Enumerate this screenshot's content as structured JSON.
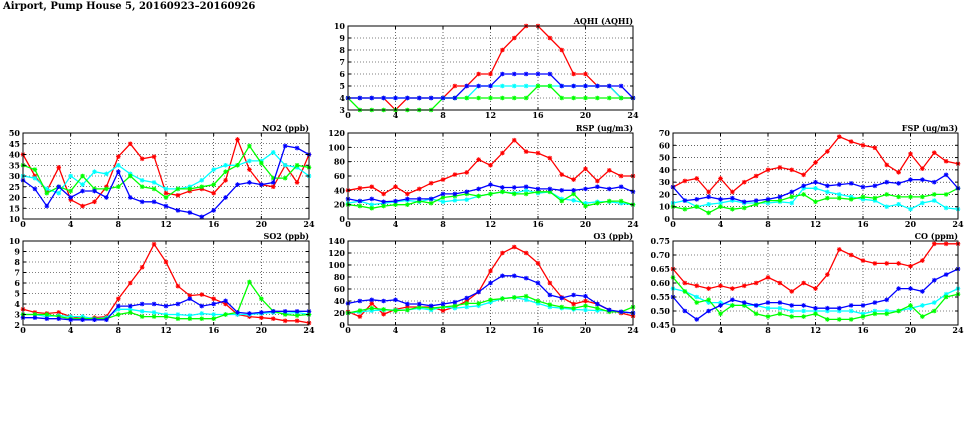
{
  "page": {
    "title": "Airport, Pump House 5, 20160923–20160926"
  },
  "chart_data": [
    {
      "id": "aqhi",
      "type": "line",
      "title": "AQHI (AQHI)",
      "xlim": [
        0,
        24
      ],
      "ylim": [
        3,
        10
      ],
      "xticks": [
        0,
        4,
        8,
        12,
        16,
        20,
        24
      ],
      "yticks": [
        3,
        4,
        5,
        6,
        7,
        8,
        9,
        10
      ],
      "grid": true,
      "x": [
        0,
        1,
        2,
        3,
        4,
        5,
        6,
        7,
        8,
        9,
        10,
        11,
        12,
        13,
        14,
        15,
        16,
        17,
        18,
        19,
        20,
        21,
        22,
        23,
        24
      ],
      "series": [
        {
          "color": "#ff0000",
          "values": [
            4,
            4,
            4,
            4,
            3,
            4,
            4,
            4,
            4,
            5,
            5,
            6,
            6,
            8,
            9,
            10,
            10,
            9,
            8,
            6,
            6,
            5,
            5,
            4,
            4
          ]
        },
        {
          "color": "#00ffff",
          "values": [
            4,
            4,
            4,
            4,
            4,
            4,
            4,
            4,
            4,
            4,
            4,
            5,
            5,
            5,
            5,
            5,
            5,
            5,
            5,
            5,
            5,
            5,
            5,
            4,
            4
          ]
        },
        {
          "color": "#00ff00",
          "values": [
            4,
            3,
            3,
            3,
            3,
            3,
            3,
            3,
            4,
            4,
            4,
            4,
            4,
            4,
            4,
            4,
            5,
            5,
            4,
            4,
            4,
            4,
            4,
            4,
            4
          ]
        },
        {
          "color": "#0000ff",
          "values": [
            4,
            4,
            4,
            4,
            4,
            4,
            4,
            4,
            4,
            4,
            5,
            5,
            5,
            6,
            6,
            6,
            6,
            6,
            5,
            5,
            5,
            5,
            5,
            5,
            4
          ]
        }
      ]
    },
    {
      "id": "no2",
      "type": "line",
      "title": "NO2 (ppb)",
      "xlim": [
        0,
        24
      ],
      "ylim": [
        10,
        50
      ],
      "xticks": [
        0,
        4,
        8,
        12,
        16,
        20,
        24
      ],
      "yticks": [
        10,
        15,
        20,
        25,
        30,
        35,
        40,
        45,
        50
      ],
      "grid": true,
      "x": [
        0,
        1,
        2,
        3,
        4,
        5,
        6,
        7,
        8,
        9,
        10,
        11,
        12,
        13,
        14,
        15,
        16,
        17,
        18,
        19,
        20,
        21,
        22,
        23,
        24
      ],
      "series": [
        {
          "color": "#ff0000",
          "values": [
            40,
            30,
            23,
            34,
            19,
            16,
            18,
            25,
            39,
            45,
            38,
            39,
            22,
            21,
            23,
            24,
            22,
            28,
            47,
            33,
            26,
            25,
            35,
            27,
            40
          ]
        },
        {
          "color": "#00ffff",
          "values": [
            30,
            29,
            24,
            22,
            30,
            26,
            32,
            31,
            35,
            31,
            28,
            27,
            24,
            24,
            25,
            28,
            33,
            35,
            35,
            37,
            37,
            41,
            35,
            34,
            30
          ]
        },
        {
          "color": "#00ff00",
          "values": [
            35,
            33,
            22,
            25,
            23,
            30,
            24,
            24,
            25,
            30,
            25,
            24,
            20,
            24,
            24,
            25,
            26,
            32,
            35,
            44,
            36,
            29,
            29,
            35,
            34
          ]
        },
        {
          "color": "#0000ff",
          "values": [
            28,
            24,
            16,
            25,
            20,
            23,
            23,
            20,
            32,
            20,
            18,
            18,
            16,
            14,
            13,
            11,
            14,
            20,
            26,
            27,
            26,
            27,
            44,
            43,
            40
          ]
        }
      ]
    },
    {
      "id": "rsp",
      "type": "line",
      "title": "RSP (ug/m3)",
      "xlim": [
        0,
        24
      ],
      "ylim": [
        0,
        120
      ],
      "xticks": [
        0,
        4,
        8,
        12,
        16,
        20,
        24
      ],
      "yticks": [
        0,
        20,
        40,
        60,
        80,
        100,
        120
      ],
      "grid": true,
      "x": [
        0,
        1,
        2,
        3,
        4,
        5,
        6,
        7,
        8,
        9,
        10,
        11,
        12,
        13,
        14,
        15,
        16,
        17,
        18,
        19,
        20,
        21,
        22,
        23,
        24
      ],
      "series": [
        {
          "color": "#ff0000",
          "values": [
            40,
            43,
            45,
            35,
            45,
            35,
            42,
            50,
            55,
            62,
            65,
            83,
            75,
            92,
            110,
            94,
            92,
            85,
            62,
            55,
            70,
            53,
            68,
            60,
            60
          ]
        },
        {
          "color": "#00ffff",
          "values": [
            22,
            25,
            20,
            22,
            24,
            26,
            24,
            28,
            24,
            26,
            27,
            32,
            35,
            38,
            36,
            40,
            36,
            38,
            28,
            26,
            22,
            24,
            24,
            22,
            20
          ]
        },
        {
          "color": "#00ff00",
          "values": [
            20,
            18,
            15,
            18,
            20,
            20,
            25,
            22,
            30,
            32,
            35,
            32,
            35,
            38,
            35,
            35,
            38,
            38,
            25,
            35,
            18,
            22,
            25,
            25,
            20
          ]
        },
        {
          "color": "#0000ff",
          "values": [
            28,
            25,
            28,
            24,
            25,
            28,
            28,
            28,
            35,
            35,
            38,
            42,
            48,
            44,
            44,
            45,
            42,
            42,
            40,
            40,
            42,
            45,
            42,
            45,
            38
          ]
        }
      ]
    },
    {
      "id": "fsp",
      "type": "line",
      "title": "FSP (ug/m3)",
      "xlim": [
        0,
        24
      ],
      "ylim": [
        0,
        70
      ],
      "xticks": [
        0,
        4,
        8,
        12,
        16,
        20,
        24
      ],
      "yticks": [
        0,
        10,
        20,
        30,
        40,
        50,
        60,
        70
      ],
      "grid": true,
      "x": [
        0,
        1,
        2,
        3,
        4,
        5,
        6,
        7,
        8,
        9,
        10,
        11,
        12,
        13,
        14,
        15,
        16,
        17,
        18,
        19,
        20,
        21,
        22,
        23,
        24
      ],
      "series": [
        {
          "color": "#ff0000",
          "values": [
            26,
            31,
            33,
            22,
            33,
            22,
            30,
            35,
            40,
            42,
            40,
            36,
            46,
            55,
            67,
            63,
            60,
            58,
            44,
            38,
            53,
            41,
            54,
            47,
            45
          ]
        },
        {
          "color": "#00ffff",
          "values": [
            13,
            15,
            10,
            12,
            13,
            15,
            13,
            13,
            13,
            14,
            13,
            25,
            25,
            22,
            20,
            18,
            16,
            15,
            10,
            12,
            8,
            13,
            15,
            9,
            8
          ]
        },
        {
          "color": "#00ff00",
          "values": [
            10,
            8,
            10,
            5,
            10,
            8,
            9,
            12,
            15,
            15,
            18,
            20,
            14,
            17,
            17,
            16,
            18,
            17,
            20,
            18,
            18,
            18,
            20,
            20,
            25
          ]
        },
        {
          "color": "#0000ff",
          "values": [
            26,
            15,
            16,
            18,
            16,
            17,
            14,
            15,
            16,
            18,
            22,
            27,
            30,
            27,
            28,
            29,
            26,
            27,
            30,
            29,
            32,
            32,
            30,
            36,
            25
          ]
        }
      ]
    },
    {
      "id": "so2",
      "type": "line",
      "title": "SO2 (ppb)",
      "xlim": [
        0,
        24
      ],
      "ylim": [
        2,
        10
      ],
      "xticks": [
        0,
        4,
        8,
        12,
        16,
        20,
        24
      ],
      "yticks": [
        2,
        3,
        4,
        5,
        6,
        7,
        8,
        9,
        10
      ],
      "grid": true,
      "x": [
        0,
        1,
        2,
        3,
        4,
        5,
        6,
        7,
        8,
        9,
        10,
        11,
        12,
        13,
        14,
        15,
        16,
        17,
        18,
        19,
        20,
        21,
        22,
        23,
        24
      ],
      "series": [
        {
          "color": "#ff0000",
          "values": [
            3.5,
            3.2,
            3.1,
            3.2,
            2.8,
            2.6,
            2.7,
            2.8,
            4.5,
            6,
            7.5,
            9.7,
            8,
            5.7,
            4.8,
            4.9,
            4.5,
            4,
            3,
            2.8,
            2.7,
            2.6,
            2.4,
            2.4,
            2.2
          ]
        },
        {
          "color": "#00ffff",
          "values": [
            3,
            3,
            2.8,
            2.9,
            2.8,
            2.8,
            2.6,
            2.7,
            3.5,
            3.5,
            3.3,
            3.2,
            3,
            3,
            2.9,
            3.1,
            3,
            3,
            3,
            3,
            3.1,
            3.2,
            3.1,
            3.2,
            3
          ]
        },
        {
          "color": "#00ff00",
          "values": [
            3,
            3,
            3,
            2.8,
            2.6,
            2.6,
            2.6,
            2.6,
            3,
            3.2,
            2.8,
            2.8,
            2.8,
            2.6,
            2.6,
            2.6,
            2.6,
            3,
            3.2,
            6.1,
            4.5,
            3.3,
            3,
            2.9,
            3
          ]
        },
        {
          "color": "#0000ff",
          "values": [
            2.7,
            2.7,
            2.6,
            2.6,
            2.5,
            2.5,
            2.5,
            2.5,
            3.8,
            3.8,
            4,
            4,
            3.8,
            4,
            4.5,
            3.8,
            4,
            4.3,
            3.2,
            3.1,
            3.2,
            3.3,
            3.3,
            3.3,
            3.3
          ]
        }
      ]
    },
    {
      "id": "o3",
      "type": "line",
      "title": "O3 (ppb)",
      "xlim": [
        0,
        24
      ],
      "ylim": [
        0,
        140
      ],
      "xticks": [
        0,
        4,
        8,
        12,
        16,
        20,
        24
      ],
      "yticks": [
        0,
        20,
        40,
        60,
        80,
        100,
        120,
        140
      ],
      "grid": true,
      "x": [
        0,
        1,
        2,
        3,
        4,
        5,
        6,
        7,
        8,
        9,
        10,
        11,
        12,
        13,
        14,
        15,
        16,
        17,
        18,
        19,
        20,
        21,
        22,
        23,
        24
      ],
      "series": [
        {
          "color": "#ff0000",
          "values": [
            22,
            14,
            36,
            18,
            26,
            30,
            30,
            30,
            24,
            30,
            40,
            55,
            90,
            120,
            130,
            120,
            103,
            70,
            46,
            35,
            40,
            35,
            25,
            20,
            15
          ]
        },
        {
          "color": "#00ffff",
          "values": [
            20,
            22,
            24,
            25,
            25,
            25,
            28,
            25,
            30,
            28,
            30,
            32,
            38,
            44,
            46,
            42,
            36,
            30,
            28,
            26,
            25,
            24,
            24,
            22,
            20
          ]
        },
        {
          "color": "#00ff00",
          "values": [
            20,
            24,
            28,
            26,
            24,
            25,
            30,
            28,
            30,
            32,
            36,
            36,
            42,
            44,
            46,
            48,
            40,
            34,
            30,
            28,
            32,
            28,
            22,
            22,
            30
          ]
        },
        {
          "color": "#0000ff",
          "values": [
            36,
            40,
            42,
            40,
            42,
            35,
            35,
            32,
            35,
            38,
            45,
            55,
            70,
            82,
            82,
            78,
            70,
            50,
            45,
            50,
            48,
            35,
            25,
            22,
            20
          ]
        }
      ]
    },
    {
      "id": "co",
      "type": "line",
      "title": "CO (ppm)",
      "xlim": [
        0,
        24
      ],
      "ylim": [
        0.45,
        0.75
      ],
      "xticks": [
        0,
        4,
        8,
        12,
        16,
        20,
        24
      ],
      "yticks": [
        0.45,
        0.5,
        0.55,
        0.6,
        0.65,
        0.7,
        0.75
      ],
      "grid": true,
      "x": [
        0,
        1,
        2,
        3,
        4,
        5,
        6,
        7,
        8,
        9,
        10,
        11,
        12,
        13,
        14,
        15,
        16,
        17,
        18,
        19,
        20,
        21,
        22,
        23,
        24
      ],
      "series": [
        {
          "color": "#ff0000",
          "values": [
            0.65,
            0.6,
            0.59,
            0.58,
            0.59,
            0.58,
            0.59,
            0.6,
            0.62,
            0.6,
            0.57,
            0.6,
            0.58,
            0.63,
            0.72,
            0.7,
            0.68,
            0.67,
            0.67,
            0.67,
            0.66,
            0.68,
            0.74,
            0.74,
            0.74
          ]
        },
        {
          "color": "#00ffff",
          "values": [
            0.58,
            0.57,
            0.55,
            0.53,
            0.53,
            0.52,
            0.52,
            0.52,
            0.51,
            0.51,
            0.5,
            0.5,
            0.5,
            0.5,
            0.5,
            0.5,
            0.49,
            0.5,
            0.5,
            0.5,
            0.51,
            0.52,
            0.53,
            0.56,
            0.58
          ]
        },
        {
          "color": "#00ff00",
          "values": [
            0.62,
            0.57,
            0.53,
            0.54,
            0.49,
            0.52,
            0.52,
            0.49,
            0.48,
            0.49,
            0.48,
            0.48,
            0.49,
            0.47,
            0.47,
            0.47,
            0.48,
            0.49,
            0.49,
            0.5,
            0.52,
            0.48,
            0.5,
            0.55,
            0.56
          ]
        },
        {
          "color": "#0000ff",
          "values": [
            0.55,
            0.5,
            0.47,
            0.5,
            0.52,
            0.54,
            0.53,
            0.52,
            0.53,
            0.53,
            0.52,
            0.52,
            0.51,
            0.51,
            0.51,
            0.52,
            0.52,
            0.53,
            0.54,
            0.58,
            0.58,
            0.57,
            0.61,
            0.63,
            0.65
          ]
        }
      ]
    }
  ]
}
